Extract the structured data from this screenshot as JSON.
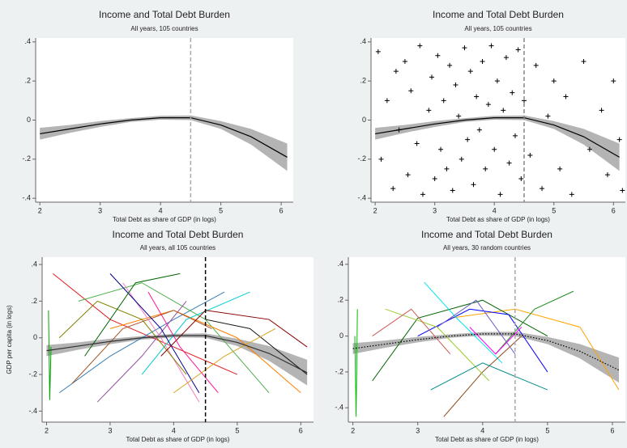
{
  "chart_data": [
    {
      "type": "line",
      "title": "Income and Total Debt Burden",
      "subtitle": "All years, 105 countries",
      "xlabel": "Total Debt as share of GDP (in logs)",
      "xlim": [
        1.93,
        6.2
      ],
      "ylim": [
        -0.42,
        0.42
      ],
      "xticks": [
        2,
        3,
        4,
        5,
        6
      ],
      "yticks": [
        {
          "value": -0.4,
          "label": "-.4"
        },
        {
          "value": -0.2,
          "label": "-.2"
        },
        0,
        {
          "value": 0.2,
          "label": ".2"
        },
        {
          "value": 0.4,
          "label": ".4"
        }
      ],
      "vline": {
        "value": 4.5,
        "color": "#aaaaaa"
      },
      "fit": {
        "x": [
          2,
          2.5,
          3,
          3.5,
          4,
          4.5,
          5,
          5.5,
          6.1
        ],
        "values": [
          -0.07,
          -0.045,
          -0.02,
          0.0,
          0.012,
          0.012,
          -0.025,
          -0.085,
          -0.19
        ],
        "lower": [
          -0.1,
          -0.065,
          -0.035,
          -0.01,
          0.002,
          0.0,
          -0.045,
          -0.125,
          -0.26
        ],
        "upper": [
          -0.04,
          -0.025,
          -0.005,
          0.01,
          0.022,
          0.024,
          -0.005,
          -0.045,
          -0.12
        ],
        "color": "#000000",
        "band_color": "#b4b4b4",
        "line_style": "solid"
      }
    },
    {
      "type": "scatter",
      "title": "Income and Total Debt Burden",
      "subtitle": "All years, 105 countries",
      "xlabel": "Total Debt as share of GDP (in logs)",
      "xlim": [
        1.93,
        6.2
      ],
      "ylim": [
        -0.42,
        0.42
      ],
      "xticks": [
        2,
        3,
        4,
        5,
        6
      ],
      "yticks": [
        {
          "value": -0.4,
          "label": "-.4"
        },
        {
          "value": -0.2,
          "label": "-.2"
        },
        0,
        {
          "value": 0.2,
          "label": ".2"
        },
        {
          "value": 0.4,
          "label": ".4"
        }
      ],
      "vline": {
        "value": 4.5,
        "color": "#888888"
      },
      "fit": {
        "x": [
          2,
          2.5,
          3,
          3.5,
          4,
          4.5,
          5,
          5.5,
          6.1
        ],
        "values": [
          -0.07,
          -0.045,
          -0.02,
          0.0,
          0.012,
          0.012,
          -0.025,
          -0.085,
          -0.19
        ],
        "lower": [
          -0.1,
          -0.065,
          -0.035,
          -0.01,
          0.002,
          0.0,
          -0.045,
          -0.125,
          -0.26
        ],
        "upper": [
          -0.04,
          -0.025,
          -0.005,
          0.01,
          0.022,
          0.024,
          -0.005,
          -0.045,
          -0.12
        ],
        "color": "#000000",
        "band_color": "#b4b4b4",
        "line_style": "solid"
      },
      "points": {
        "color": "#000000",
        "x": [
          2.05,
          2.1,
          2.2,
          2.3,
          2.35,
          2.4,
          2.5,
          2.55,
          2.6,
          2.7,
          2.75,
          2.8,
          2.9,
          2.95,
          3.0,
          3.05,
          3.1,
          3.15,
          3.2,
          3.25,
          3.3,
          3.35,
          3.4,
          3.45,
          3.5,
          3.55,
          3.6,
          3.65,
          3.7,
          3.75,
          3.8,
          3.85,
          3.9,
          3.95,
          4.0,
          4.05,
          4.1,
          4.15,
          4.2,
          4.25,
          4.3,
          4.35,
          4.4,
          4.45,
          4.5,
          4.6,
          4.7,
          4.8,
          4.9,
          5.0,
          5.1,
          5.2,
          5.3,
          5.5,
          5.6,
          5.8,
          5.9,
          6.0,
          6.1,
          6.15
        ],
        "values": [
          0.35,
          -0.2,
          0.1,
          -0.35,
          0.25,
          -0.05,
          0.3,
          -0.28,
          0.15,
          -0.12,
          0.38,
          -0.38,
          0.05,
          0.22,
          -0.3,
          0.33,
          -0.15,
          0.1,
          -0.25,
          0.28,
          -0.36,
          0.18,
          0.02,
          -0.2,
          0.37,
          -0.1,
          0.25,
          -0.33,
          0.12,
          -0.05,
          0.3,
          -0.25,
          0.08,
          0.38,
          -0.15,
          0.2,
          -0.38,
          0.05,
          0.32,
          -0.22,
          0.14,
          -0.08,
          0.36,
          -0.3,
          0.1,
          -0.18,
          0.28,
          -0.35,
          0.02,
          0.2,
          -0.25,
          0.12,
          -0.38,
          0.3,
          -0.15,
          0.05,
          -0.28,
          0.2,
          -0.1,
          -0.36
        ]
      }
    },
    {
      "type": "line",
      "title": "Income and Total Debt Burden",
      "subtitle": "All years, all 105 countries",
      "xlabel": "Total Debt as share of GDP (in logs)",
      "ylabel": "GDP per capita (in logs)",
      "xlim": [
        1.93,
        6.2
      ],
      "ylim": [
        -0.46,
        0.44
      ],
      "xticks": [
        2,
        3,
        4,
        5,
        6
      ],
      "yticks": [
        {
          "value": -0.4,
          "label": "-.4"
        },
        {
          "value": -0.2,
          "label": "-.2"
        },
        0,
        {
          "value": 0.2,
          "label": ".2"
        },
        {
          "value": 0.4,
          "label": ".4"
        }
      ],
      "vline": {
        "value": 4.5,
        "color": "#000000"
      },
      "fit": {
        "x": [
          2,
          2.5,
          3,
          3.5,
          4,
          4.5,
          5,
          5.5,
          6.1
        ],
        "values": [
          -0.07,
          -0.045,
          -0.02,
          0.0,
          0.012,
          0.012,
          -0.025,
          -0.085,
          -0.19
        ],
        "lower": [
          -0.1,
          -0.065,
          -0.035,
          -0.01,
          0.002,
          0.0,
          -0.045,
          -0.125,
          -0.26
        ],
        "upper": [
          -0.04,
          -0.025,
          -0.005,
          0.01,
          0.022,
          0.024,
          -0.005,
          -0.045,
          -0.12
        ],
        "color": "#333333",
        "band_color": "#b4b4b4",
        "line_style": "solid"
      },
      "series": [
        {
          "color": "#00a000",
          "x": [
            2.03,
            2.05,
            2.07
          ],
          "values": [
            0.15,
            -0.34,
            -0.05
          ]
        },
        {
          "color": "#e41a1c",
          "x": [
            2.1,
            3,
            4,
            5
          ],
          "values": [
            0.35,
            0.1,
            -0.05,
            -0.2
          ]
        },
        {
          "color": "#377eb8",
          "x": [
            2.2,
            3,
            4,
            4.8
          ],
          "values": [
            -0.3,
            -0.1,
            0.1,
            0.25
          ]
        },
        {
          "color": "#4daf4a",
          "x": [
            2.5,
            3.5,
            4.5,
            5.5
          ],
          "values": [
            0.2,
            0.3,
            0.1,
            -0.3
          ]
        },
        {
          "color": "#984ea3",
          "x": [
            2.8,
            3.5,
            4.2
          ],
          "values": [
            -0.35,
            -0.1,
            0.2
          ]
        },
        {
          "color": "#ff7f00",
          "x": [
            3,
            4,
            5,
            6
          ],
          "values": [
            0.05,
            0.15,
            0.0,
            -0.3
          ]
        },
        {
          "color": "#a65628",
          "x": [
            2.4,
            3.2,
            4,
            4.6
          ],
          "values": [
            -0.25,
            0.05,
            0.15,
            0.05
          ]
        },
        {
          "color": "#f781bf",
          "x": [
            3.2,
            3.8,
            4.4
          ],
          "values": [
            0.3,
            0.0,
            -0.35
          ]
        },
        {
          "color": "#00ced1",
          "x": [
            3.5,
            4.2,
            5.2
          ],
          "values": [
            -0.2,
            0.1,
            0.25
          ]
        },
        {
          "color": "#1a1a1a",
          "x": [
            4.5,
            5.2,
            6.1
          ],
          "values": [
            0.1,
            0.05,
            -0.2
          ]
        },
        {
          "color": "#808000",
          "x": [
            2.2,
            2.8,
            3.5,
            4.2
          ],
          "values": [
            0.0,
            0.2,
            0.1,
            -0.2
          ]
        },
        {
          "color": "#8b0000",
          "x": [
            3.8,
            4.5,
            5.5,
            6.1
          ],
          "values": [
            -0.1,
            0.15,
            0.1,
            -0.05
          ]
        },
        {
          "color": "#00008b",
          "x": [
            3,
            3.8,
            4.4
          ],
          "values": [
            0.35,
            0.05,
            -0.3
          ]
        },
        {
          "color": "#ff1493",
          "x": [
            3.6,
            4.1,
            4.7
          ],
          "values": [
            0.25,
            -0.05,
            -0.3
          ]
        },
        {
          "color": "#006400",
          "x": [
            2.6,
            3.4,
            4.1
          ],
          "values": [
            -0.1,
            0.3,
            0.35
          ]
        },
        {
          "color": "#daa520",
          "x": [
            4,
            4.8,
            5.6
          ],
          "values": [
            -0.3,
            -0.1,
            0.05
          ]
        }
      ]
    },
    {
      "type": "line",
      "title": "Income and Total Debt Burden",
      "subtitle": "All years, 30 random countries",
      "xlabel": "Total Debt as share of GDP (in logs)",
      "xlim": [
        1.93,
        6.2
      ],
      "ylim": [
        -0.48,
        0.44
      ],
      "xticks": [
        2,
        3,
        4,
        5,
        6
      ],
      "yticks": [
        {
          "value": -0.4,
          "label": "-.4"
        },
        {
          "value": -0.2,
          "label": "-.2"
        },
        0,
        {
          "value": 0.2,
          "label": ".2"
        },
        {
          "value": 0.4,
          "label": ".4"
        }
      ],
      "vline": {
        "value": 4.5,
        "color": "#aaaaaa"
      },
      "fit": {
        "x": [
          2,
          2.5,
          3,
          3.5,
          4,
          4.5,
          5,
          5.5,
          6.1
        ],
        "values": [
          -0.07,
          -0.045,
          -0.02,
          0.0,
          0.012,
          0.012,
          -0.025,
          -0.085,
          -0.19
        ],
        "lower": [
          -0.1,
          -0.065,
          -0.035,
          -0.01,
          0.002,
          0.0,
          -0.045,
          -0.125,
          -0.26
        ],
        "upper": [
          -0.04,
          -0.025,
          -0.005,
          0.01,
          0.022,
          0.024,
          -0.005,
          -0.045,
          -0.12
        ],
        "color": "#000000",
        "band_color": "#b4b4b4",
        "line_style": "dotted"
      },
      "series": [
        {
          "color": "#00c000",
          "x": [
            2.03,
            2.05,
            2.07
          ],
          "values": [
            0.0,
            -0.45,
            0.15
          ]
        },
        {
          "color": "#ffa500",
          "x": [
            3.5,
            4.5,
            5.5,
            6.1
          ],
          "values": [
            0.1,
            0.15,
            0.05,
            -0.3
          ]
        },
        {
          "color": "#006400",
          "x": [
            2.3,
            3,
            4,
            5
          ],
          "values": [
            -0.25,
            0.1,
            0.2,
            0.0
          ]
        },
        {
          "color": "#0000ff",
          "x": [
            3,
            3.8,
            4.4,
            5
          ],
          "values": [
            0.0,
            0.15,
            0.12,
            -0.2
          ]
        },
        {
          "color": "#00e5ee",
          "x": [
            3.1,
            3.6,
            4.3
          ],
          "values": [
            0.3,
            0.1,
            -0.15
          ]
        },
        {
          "color": "#228b22",
          "x": [
            4.2,
            4.8,
            5.4
          ],
          "values": [
            -0.1,
            0.15,
            0.25
          ]
        },
        {
          "color": "#ff00ff",
          "x": [
            3.8,
            4.2,
            4.6
          ],
          "values": [
            0.05,
            -0.1,
            0.05
          ]
        },
        {
          "color": "#8b4513",
          "x": [
            3.4,
            4,
            4.6
          ],
          "values": [
            -0.45,
            -0.2,
            0.0
          ]
        },
        {
          "color": "#9acd32",
          "x": [
            2.5,
            3.3,
            4.1
          ],
          "values": [
            0.15,
            0.05,
            -0.25
          ]
        },
        {
          "color": "#cd5c5c",
          "x": [
            2.3,
            2.9,
            3.5
          ],
          "values": [
            0.0,
            0.15,
            -0.1
          ]
        },
        {
          "color": "#6a5acd",
          "x": [
            3.3,
            3.9,
            4.5
          ],
          "values": [
            0.05,
            0.2,
            -0.1
          ]
        },
        {
          "color": "#008b8b",
          "x": [
            3.2,
            4,
            5
          ],
          "values": [
            -0.3,
            -0.15,
            -0.3
          ]
        }
      ]
    }
  ]
}
